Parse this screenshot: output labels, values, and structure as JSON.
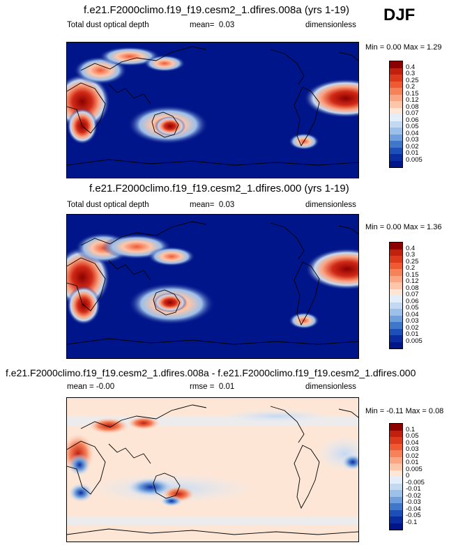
{
  "season": "DJF",
  "panels": [
    {
      "id": "p1",
      "title": "f.e21.F2000climo.f19_f19.cesm2_1.dfires.008a (yrs 1-19)",
      "variable": "Total dust optical depth",
      "stat_label": "mean=",
      "stat_value": "0.03",
      "units": "dimensionless",
      "minmax": "Min =  0.00 Max =  1.29",
      "scale": "seq"
    },
    {
      "id": "p2",
      "title": "f.e21.F2000climo.f19_f19.cesm2_1.dfires.000 (yrs 1-19)",
      "variable": "Total dust optical depth",
      "stat_label": "mean=",
      "stat_value": "0.03",
      "units": "dimensionless",
      "minmax": "Min =  0.00 Max =  1.36",
      "scale": "seq"
    },
    {
      "id": "p3",
      "title": "f.e21.F2000climo.f19_f19.cesm2_1.dfires.008a - f.e21.F2000climo.f19_f19.cesm2_1.dfires.000",
      "variable": "mean =  -0.00",
      "stat_label": "rmse =",
      "stat_value": "0.01",
      "units": "dimensionless",
      "minmax": "Min = -0.11 Max =  0.08",
      "scale": "diff"
    }
  ],
  "colorbars": {
    "seq": {
      "labels": [
        "0.4",
        "0.3",
        "0.25",
        "0.2",
        "0.15",
        "0.12",
        "0.08",
        "0.07",
        "0.06",
        "0.05",
        "0.04",
        "0.03",
        "0.02",
        "0.01",
        "0.005"
      ],
      "colors": [
        "#8b0000",
        "#c1200f",
        "#dd3a1c",
        "#f05a33",
        "#f7825a",
        "#fca582",
        "#fdc6aa",
        "#fde6d6",
        "#e4eefa",
        "#c3d9f2",
        "#9cc0ea",
        "#6f9fdc",
        "#3f78cb",
        "#1c4fb8",
        "#0a2ca0",
        "#00158a"
      ]
    },
    "diff": {
      "labels": [
        "0.1",
        "0.05",
        "0.04",
        "0.03",
        "0.02",
        "0.01",
        "0.005",
        "0",
        "-0.005",
        "-0.01",
        "-0.02",
        "-0.03",
        "-0.04",
        "-0.05",
        "-0.1"
      ],
      "colors": [
        "#8b0000",
        "#c1200f",
        "#dd3a1c",
        "#f05a33",
        "#f7825a",
        "#fca582",
        "#fdc6aa",
        "#fde6d6",
        "#e4eefa",
        "#c3d9f2",
        "#9cc0ea",
        "#6f9fdc",
        "#3f78cb",
        "#1c4fb8",
        "#0a2ca0",
        "#00158a"
      ]
    }
  }
}
